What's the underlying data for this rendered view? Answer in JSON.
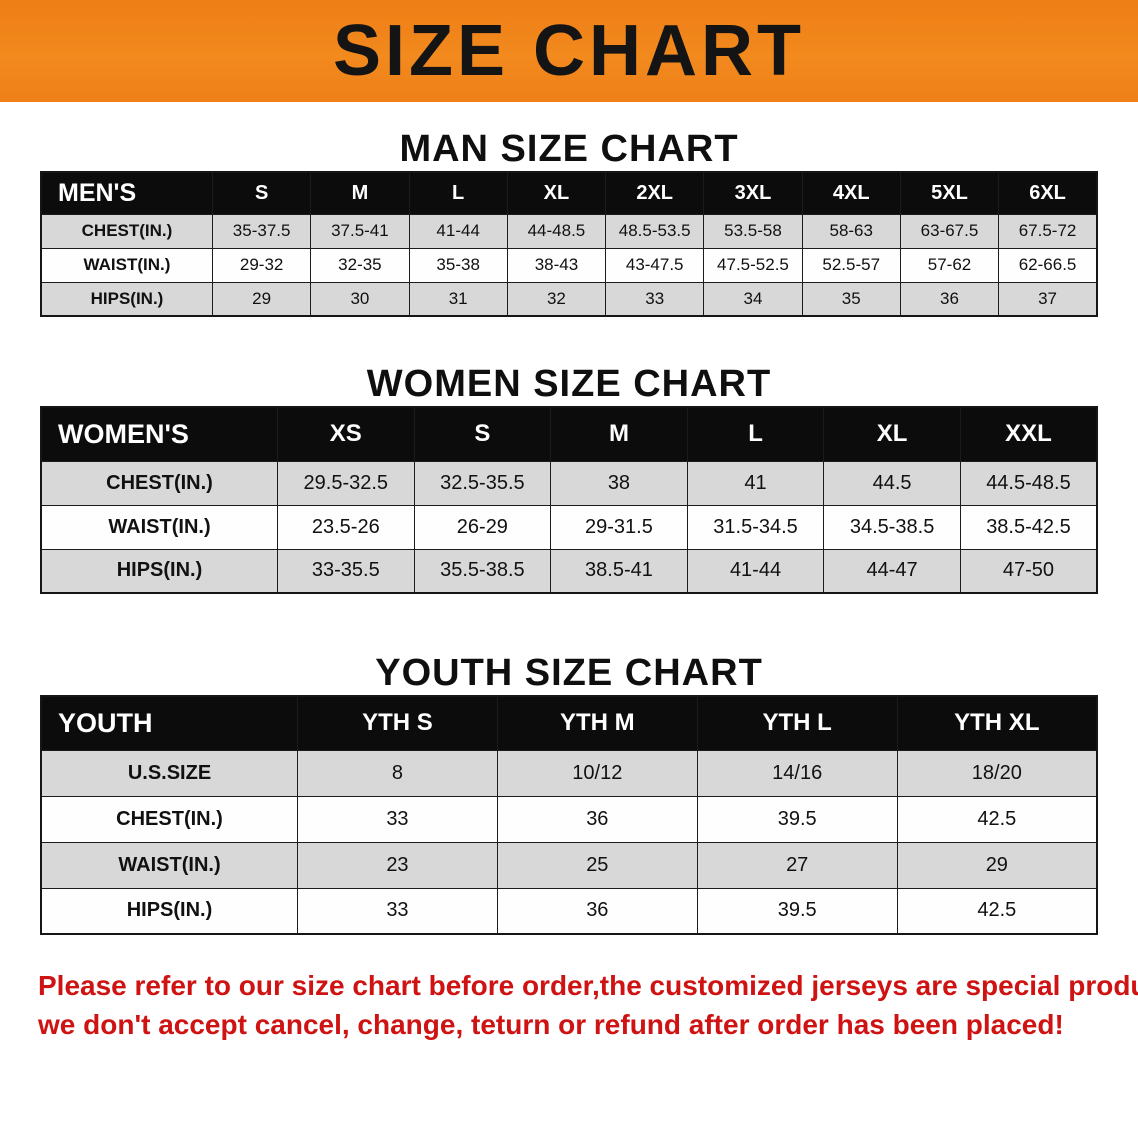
{
  "banner": {
    "title": "SIZE CHART",
    "bg_color": "#f28a1e",
    "text_color": "#141414"
  },
  "colors": {
    "header_bar": "#0c0c0c",
    "row_gray": "#d8d8d8",
    "notice_red": "#cf1212"
  },
  "sections": [
    {
      "heading": "MAN SIZE CHART",
      "table": {
        "header": [
          "MEN'S",
          "S",
          "M",
          "L",
          "XL",
          "2XL",
          "3XL",
          "4XL",
          "5XL",
          "6XL"
        ],
        "rows": [
          [
            "CHEST(IN.)",
            "35-37.5",
            "37.5-41",
            "41-44",
            "44-48.5",
            "48.5-53.5",
            "53.5-58",
            "58-63",
            "63-67.5",
            "67.5-72"
          ],
          [
            "WAIST(IN.)",
            "29-32",
            "32-35",
            "35-38",
            "38-43",
            "43-47.5",
            "47.5-52.5",
            "52.5-57",
            "57-62",
            "62-66.5"
          ],
          [
            "HIPS(IN.)",
            "29",
            "30",
            "31",
            "32",
            "33",
            "34",
            "35",
            "36",
            "37"
          ]
        ]
      }
    },
    {
      "heading": "WOMEN SIZE CHART",
      "table": {
        "header": [
          "WOMEN'S",
          "XS",
          "S",
          "M",
          "L",
          "XL",
          "XXL"
        ],
        "rows": [
          [
            "CHEST(IN.)",
            "29.5-32.5",
            "32.5-35.5",
            "38",
            "41",
            "44.5",
            "44.5-48.5"
          ],
          [
            "WAIST(IN.)",
            "23.5-26",
            "26-29",
            "29-31.5",
            "31.5-34.5",
            "34.5-38.5",
            "38.5-42.5"
          ],
          [
            "HIPS(IN.)",
            "33-35.5",
            "35.5-38.5",
            "38.5-41",
            "41-44",
            "44-47",
            "47-50"
          ]
        ]
      }
    },
    {
      "heading": "YOUTH SIZE CHART",
      "table": {
        "header": [
          "YOUTH",
          "YTH S",
          "YTH M",
          "YTH L",
          "YTH XL"
        ],
        "rows": [
          [
            "U.S.SIZE",
            "8",
            "10/12",
            "14/16",
            "18/20"
          ],
          [
            "CHEST(IN.)",
            "33",
            "36",
            "39.5",
            "42.5"
          ],
          [
            "WAIST(IN.)",
            "23",
            "25",
            "27",
            "29"
          ],
          [
            "HIPS(IN.)",
            "33",
            "36",
            "39.5",
            "42.5"
          ]
        ]
      }
    }
  ],
  "notice": {
    "line1": "Please refer to our size chart before order,the customized jerseys are special products,",
    "line2": "we don't accept cancel, change, teturn or refund after order has been placed!"
  }
}
